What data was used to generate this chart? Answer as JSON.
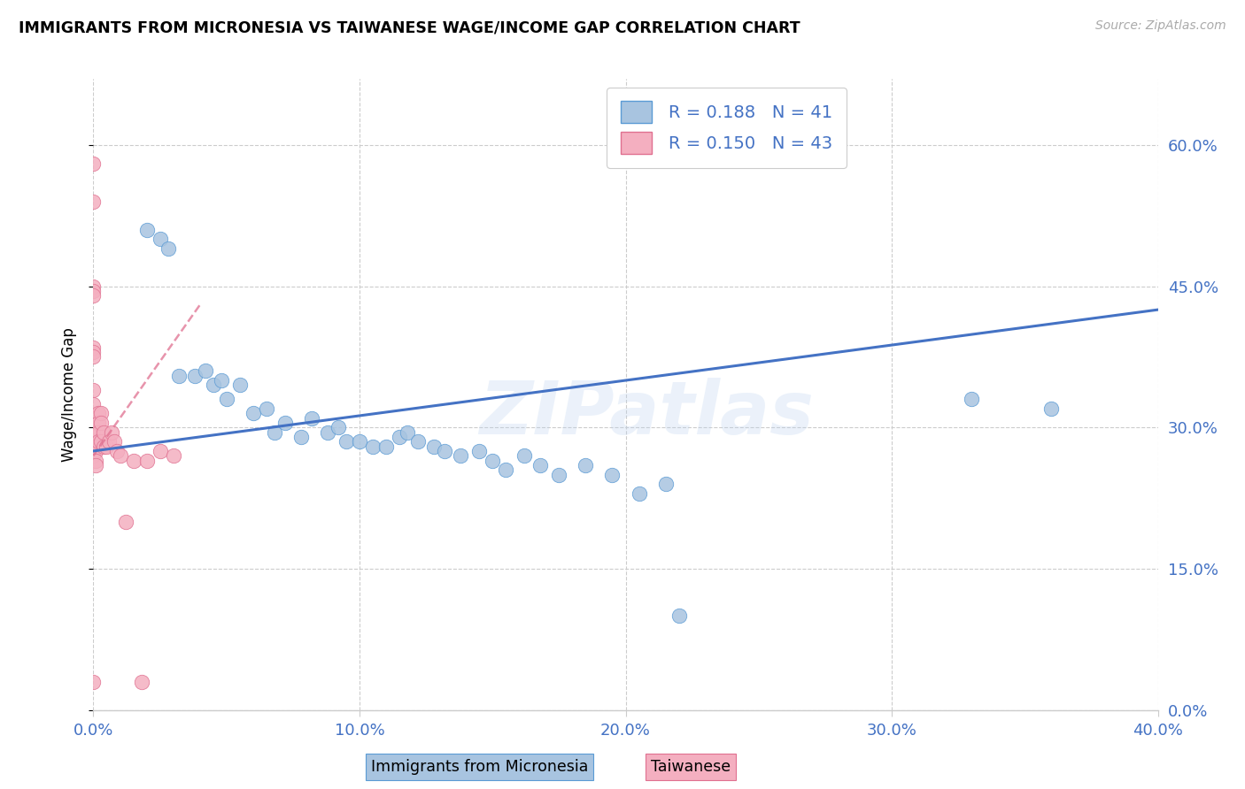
{
  "title": "IMMIGRANTS FROM MICRONESIA VS TAIWANESE WAGE/INCOME GAP CORRELATION CHART",
  "source": "Source: ZipAtlas.com",
  "legend_label1": "Immigrants from Micronesia",
  "legend_label2": "Taiwanese",
  "ylabel": "Wage/Income Gap",
  "watermark": "ZIPatlas",
  "xmin": 0.0,
  "xmax": 0.4,
  "ymin": 0.0,
  "ymax": 0.67,
  "ytick_vals": [
    0.0,
    0.15,
    0.3,
    0.45,
    0.6
  ],
  "xtick_vals": [
    0.0,
    0.1,
    0.2,
    0.3,
    0.4
  ],
  "blue_R": "0.188",
  "blue_N": "41",
  "pink_R": "0.150",
  "pink_N": "43",
  "blue_fill": "#a8c4e0",
  "blue_edge": "#5b9bd5",
  "pink_fill": "#f4afc0",
  "pink_edge": "#e07090",
  "blue_line": "#4472c4",
  "pink_line_color": "#e07090",
  "grid_color": "#cccccc",
  "blue_scatter_x": [
    0.02,
    0.025,
    0.028,
    0.032,
    0.038,
    0.042,
    0.045,
    0.048,
    0.05,
    0.055,
    0.06,
    0.065,
    0.068,
    0.072,
    0.078,
    0.082,
    0.088,
    0.092,
    0.095,
    0.1,
    0.105,
    0.11,
    0.115,
    0.118,
    0.122,
    0.128,
    0.132,
    0.138,
    0.145,
    0.15,
    0.155,
    0.162,
    0.168,
    0.175,
    0.185,
    0.195,
    0.205,
    0.215,
    0.22,
    0.33,
    0.36
  ],
  "blue_scatter_y": [
    0.51,
    0.5,
    0.49,
    0.355,
    0.355,
    0.36,
    0.345,
    0.35,
    0.33,
    0.345,
    0.315,
    0.32,
    0.295,
    0.305,
    0.29,
    0.31,
    0.295,
    0.3,
    0.285,
    0.285,
    0.28,
    0.28,
    0.29,
    0.295,
    0.285,
    0.28,
    0.275,
    0.27,
    0.275,
    0.265,
    0.255,
    0.27,
    0.26,
    0.25,
    0.26,
    0.25,
    0.23,
    0.24,
    0.1,
    0.33,
    0.32
  ],
  "pink_scatter_x": [
    0.0,
    0.0,
    0.0,
    0.0,
    0.0,
    0.0,
    0.0,
    0.0,
    0.0,
    0.0,
    0.0,
    0.0,
    0.0,
    0.0,
    0.0,
    0.0,
    0.0,
    0.001,
    0.001,
    0.001,
    0.001,
    0.001,
    0.002,
    0.002,
    0.002,
    0.002,
    0.003,
    0.003,
    0.003,
    0.004,
    0.004,
    0.005,
    0.006,
    0.007,
    0.008,
    0.009,
    0.01,
    0.012,
    0.015,
    0.018,
    0.02,
    0.025,
    0.03
  ],
  "pink_scatter_y": [
    0.58,
    0.54,
    0.45,
    0.445,
    0.44,
    0.385,
    0.38,
    0.375,
    0.34,
    0.325,
    0.3,
    0.295,
    0.29,
    0.285,
    0.275,
    0.27,
    0.03,
    0.295,
    0.28,
    0.275,
    0.265,
    0.26,
    0.315,
    0.305,
    0.295,
    0.285,
    0.315,
    0.305,
    0.285,
    0.295,
    0.28,
    0.28,
    0.285,
    0.295,
    0.285,
    0.275,
    0.27,
    0.2,
    0.265,
    0.03,
    0.265,
    0.275,
    0.27
  ],
  "blue_line_x0": 0.0,
  "blue_line_x1": 0.4,
  "blue_line_y0": 0.275,
  "blue_line_y1": 0.425,
  "pink_line_x0": 0.0,
  "pink_line_x1": 0.04,
  "pink_line_y0": 0.27,
  "pink_line_y1": 0.43
}
